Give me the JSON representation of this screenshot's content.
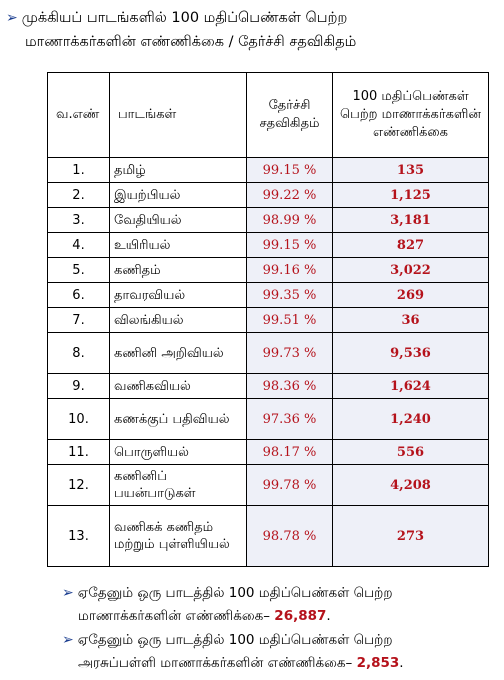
{
  "heading": {
    "bullet": "➢",
    "line1": "முக்கியப் பாடங்களில் 100 மதிப்பெண்கள் பெற்ற",
    "line2": "மாணாக்கர்களின் எண்ணிக்கை / தேர்ச்சி சதவிகிதம்"
  },
  "table": {
    "headers": {
      "sno": "வ.எண்",
      "subject": "பாடங்கள்",
      "pass_percent": "தேர்ச்சி சதவிகிதம்",
      "centum": "100 மதிப்பெண்கள் பெற்ற மாணாக்கர்களின் எண்ணிக்கை"
    },
    "rows": [
      {
        "sno": "1.",
        "subject": "தமிழ்",
        "pass": "99.15 %",
        "centum": "135"
      },
      {
        "sno": "2.",
        "subject": "இயற்பியல்",
        "pass": "99.22 %",
        "centum": "1,125"
      },
      {
        "sno": "3.",
        "subject": "வேதியியல்",
        "pass": "98.99 %",
        "centum": "3,181"
      },
      {
        "sno": "4.",
        "subject": "உயிரியல்",
        "pass": "99.15 %",
        "centum": "827"
      },
      {
        "sno": "5.",
        "subject": "கணிதம்",
        "pass": "99.16 %",
        "centum": "3,022"
      },
      {
        "sno": "6.",
        "subject": "தாவரவியல்",
        "pass": "99.35 %",
        "centum": "269"
      },
      {
        "sno": "7.",
        "subject": "விலங்கியல்",
        "pass": "99.51 %",
        "centum": "36"
      },
      {
        "sno": "8.",
        "subject": "கணினி அறிவியல்",
        "pass": "99.73 %",
        "centum": "9,536"
      },
      {
        "sno": "9.",
        "subject": "வணிகவியல்",
        "pass": "98.36 %",
        "centum": "1,624"
      },
      {
        "sno": "10.",
        "subject": "கணக்குப் பதிவியல்",
        "pass": "97.36 %",
        "centum": "1,240"
      },
      {
        "sno": "11.",
        "subject": "பொருளியல்",
        "pass": "98.17 %",
        "centum": "556"
      },
      {
        "sno": "12.",
        "subject": "கணினிப் பயன்பாடுகள்",
        "pass": "99.78 %",
        "centum": "4,208"
      },
      {
        "sno": "13.",
        "subject": "வணிகக் கணிதம் மற்றும் புள்ளியியல்",
        "pass": "98.78 %",
        "centum": "273"
      }
    ]
  },
  "notes": [
    {
      "bullet": "➢",
      "line1": "ஏதேனும் ஒரு பாடத்தில் 100 மதிப்பெண்கள் பெற்ற",
      "line2": "மாணாக்கர்களின் எண்ணிக்கை–",
      "value": "26,887",
      "end": "."
    },
    {
      "bullet": "➢",
      "line1": "ஏதேனும் ஒரு பாடத்தில் 100 மதிப்பெண்கள் பெற்ற",
      "line2": "அரசுப்பள்ளி மாணாக்கர்களின் எண்ணிக்கை–",
      "value": "2,853",
      "end": "."
    }
  ],
  "colors": {
    "value_red": "#b5121b",
    "cell_tint": "#eef0f8",
    "bullet_blue": "#1a3d8f"
  }
}
